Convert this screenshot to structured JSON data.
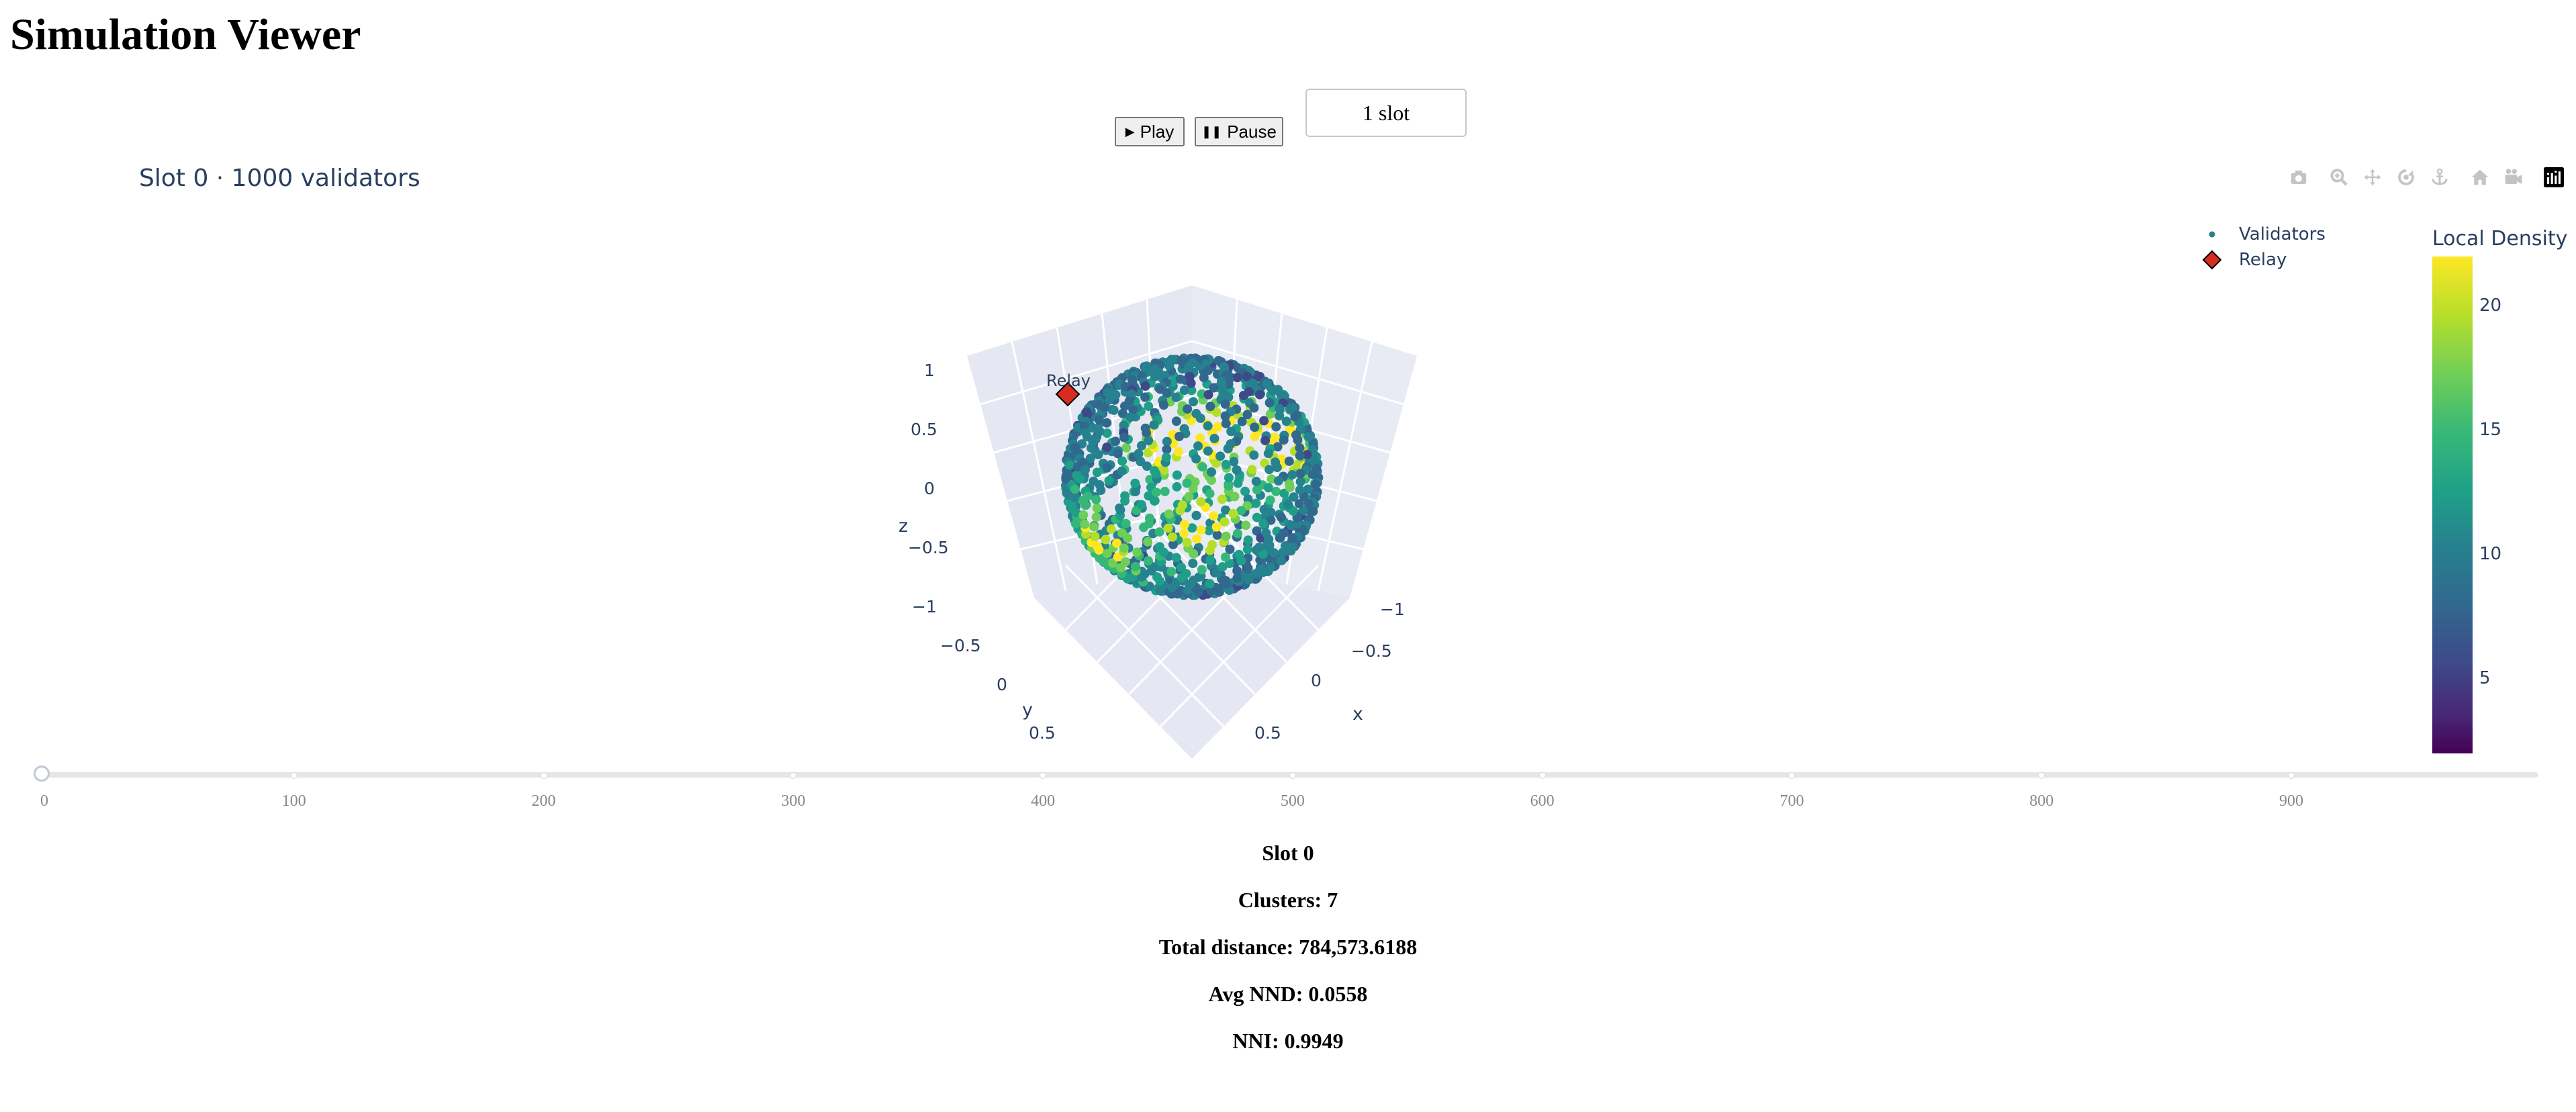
{
  "page": {
    "title": "Simulation Viewer"
  },
  "controls": {
    "play_label": "Play",
    "pause_label": "Pause",
    "speed_selected": "1 slot"
  },
  "plot": {
    "title": "Slot 0 · 1000 validators",
    "legend": [
      {
        "label": "Validators",
        "color": "#2c7f8e",
        "symbol": "circle"
      },
      {
        "label": "Relay",
        "color": "#d62d20",
        "symbol": "diamond"
      }
    ],
    "modebar": [
      "camera-icon",
      "zoom-icon",
      "pan-icon",
      "orbit-rotation-icon",
      "turntable-rotation-icon",
      "reset-camera-icon",
      "reset-view-icon",
      "plotly-logo-icon"
    ]
  },
  "chart_data": {
    "type": "scatter",
    "title": "Slot 0 · 1000 validators",
    "count": 1000,
    "axes": {
      "x": {
        "label": "x",
        "ticks": [
          "−1",
          "−0.5",
          "0",
          "0.5"
        ]
      },
      "y": {
        "label": "y",
        "ticks": [
          "−0.5",
          "0",
          "0.5"
        ]
      },
      "z": {
        "label": "z",
        "ticks": [
          "1",
          "0.5",
          "0",
          "−0.5",
          "−1"
        ]
      }
    },
    "colorbar": {
      "title": "Local Density",
      "ticks": [
        "20",
        "15",
        "10",
        "5"
      ],
      "tick_values": [
        20,
        15,
        10,
        5
      ],
      "range": [
        2,
        22
      ],
      "colorscale": "Viridis"
    },
    "relay_annotation": "Relay"
  },
  "slider": {
    "min": 0,
    "max": 999,
    "value": 0,
    "labels": [
      "0",
      "100",
      "200",
      "300",
      "400",
      "500",
      "600",
      "700",
      "800",
      "900"
    ]
  },
  "stats": {
    "slot": "Slot 0",
    "clusters": "Clusters: 7",
    "total_distance": "Total distance: 784,573.6188",
    "avg_nnd": "Avg NND: 0.0558",
    "nni": "NNI: 0.9949"
  }
}
